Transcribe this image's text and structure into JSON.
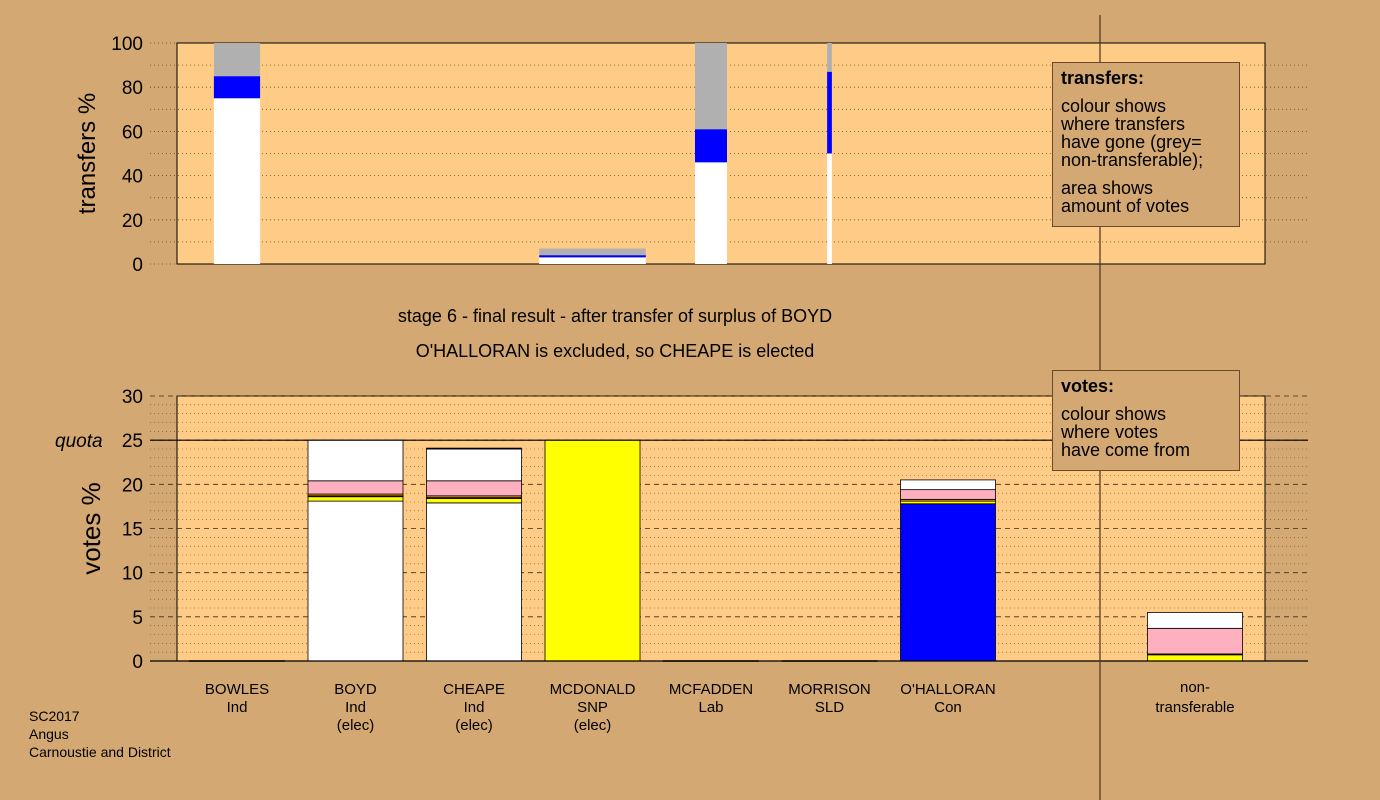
{
  "stage_title": "stage 6 - final result - after transfer of surplus of BOYD",
  "stage_subtitle": "O'HALLORAN is excluded, so CHEAPE is elected",
  "transfers_legend": {
    "title": "transfers:",
    "lines": [
      "colour shows",
      "where transfers",
      "have gone (grey=",
      "non-transferable);"
    ],
    "lines2": [
      "area shows",
      "amount of votes"
    ]
  },
  "votes_legend": {
    "title": "votes:",
    "lines": [
      "colour shows",
      "where votes",
      "have come from"
    ]
  },
  "footer": [
    "SC2017",
    "Angus",
    "Carnoustie and District"
  ],
  "colors": {
    "background": "#d4a872",
    "plot_area": "#ffcc88",
    "Ind": "#ffffff",
    "SNP": "#ffff00",
    "Con": "#0000ff",
    "Lab": "#ff0000",
    "SLD": "#ffa500",
    "Grn": "#00a000",
    "pink": "#ffb0c0",
    "non_transferable": "#b0b0b0"
  },
  "chart_data": [
    {
      "type": "bar",
      "name": "transfers",
      "ylabel": "transfers %",
      "ylim": [
        0,
        100
      ],
      "yticks": [
        0,
        20,
        40,
        60,
        80,
        100
      ],
      "grid": true,
      "note": "stacked transfer bars; colour shows where transfers went",
      "bars": [
        {
          "category": "BOWLES",
          "width_share": 0.39,
          "segments": [
            {
              "color": "#ffffff",
              "from": 0,
              "to": 75
            },
            {
              "color": "#0000ff",
              "from": 75,
              "to": 85
            },
            {
              "color": "#b0b0b0",
              "from": 85,
              "to": 100
            }
          ]
        },
        {
          "category": "MCDONALD",
          "width_share": 0.9,
          "segments": [
            {
              "color": "#ffffff",
              "from": 0,
              "to": 3
            },
            {
              "color": "#0000ff",
              "from": 3,
              "to": 4
            },
            {
              "color": "#b0b0b0",
              "from": 4,
              "to": 7
            }
          ]
        },
        {
          "category": "MCFADDEN",
          "width_share": 0.27,
          "segments": [
            {
              "color": "#ffffff",
              "from": 0,
              "to": 46
            },
            {
              "color": "#0000ff",
              "from": 46,
              "to": 61
            },
            {
              "color": "#b0b0b0",
              "from": 61,
              "to": 100
            }
          ]
        },
        {
          "category": "MORRISON",
          "width_share": 0.04,
          "segments": [
            {
              "color": "#ffffff",
              "from": 0,
              "to": 50
            },
            {
              "color": "#0000ff",
              "from": 50,
              "to": 87
            },
            {
              "color": "#b0b0b0",
              "from": 87,
              "to": 100
            }
          ]
        }
      ]
    },
    {
      "type": "bar",
      "name": "votes",
      "ylabel": "votes %",
      "ylim": [
        0,
        30
      ],
      "yticks": [
        0,
        5,
        10,
        15,
        20,
        25,
        30
      ],
      "quota": 25,
      "quota_label": "quota",
      "grid": true,
      "categories": [
        {
          "name": "BOWLES",
          "party": "Ind",
          "status": ""
        },
        {
          "name": "BOYD",
          "party": "Ind",
          "status": "(elec)"
        },
        {
          "name": "CHEAPE",
          "party": "Ind",
          "status": "(elec)"
        },
        {
          "name": "MCDONALD",
          "party": "SNP",
          "status": "(elec)"
        },
        {
          "name": "MCFADDEN",
          "party": "Lab",
          "status": ""
        },
        {
          "name": "MORRISON",
          "party": "SLD",
          "status": ""
        },
        {
          "name": "O'HALLORAN",
          "party": "Con",
          "status": ""
        }
      ],
      "nontransferable_label": [
        "non-",
        "transferable"
      ],
      "stacks": [
        [],
        [
          {
            "color": "#ffffff",
            "value": 18.1
          },
          {
            "color": "#ffff00",
            "value": 0.5
          },
          {
            "color": "#ff0000",
            "value": 0.1
          },
          {
            "color": "#ffa500",
            "value": 0.2
          },
          {
            "color": "#ffb0c0",
            "value": 1.5
          },
          {
            "color": "#ffffff",
            "value": 4.6
          }
        ],
        [
          {
            "color": "#ffffff",
            "value": 17.9
          },
          {
            "color": "#ffff00",
            "value": 0.5
          },
          {
            "color": "#ff0000",
            "value": 0.1
          },
          {
            "color": "#ffa500",
            "value": 0.2
          },
          {
            "color": "#ffb0c0",
            "value": 1.7
          },
          {
            "color": "#ffffff",
            "value": 3.6
          },
          {
            "color": "#0000ff",
            "value": 0.1
          }
        ],
        [
          {
            "color": "#ffff00",
            "value": 25.0
          }
        ],
        [],
        [],
        [
          {
            "color": "#0000ff",
            "value": 17.8
          },
          {
            "color": "#ffff00",
            "value": 0.3
          },
          {
            "color": "#ffa500",
            "value": 0.2
          },
          {
            "color": "#ffb0c0",
            "value": 1.1
          },
          {
            "color": "#ffffff",
            "value": 1.1
          }
        ]
      ],
      "nontransferable_stack": [
        {
          "color": "#ffff00",
          "value": 0.7
        },
        {
          "color": "#ff0000",
          "value": 0.1
        },
        {
          "color": "#ffb0c0",
          "value": 2.9
        },
        {
          "color": "#ffffff",
          "value": 1.8
        }
      ]
    }
  ]
}
